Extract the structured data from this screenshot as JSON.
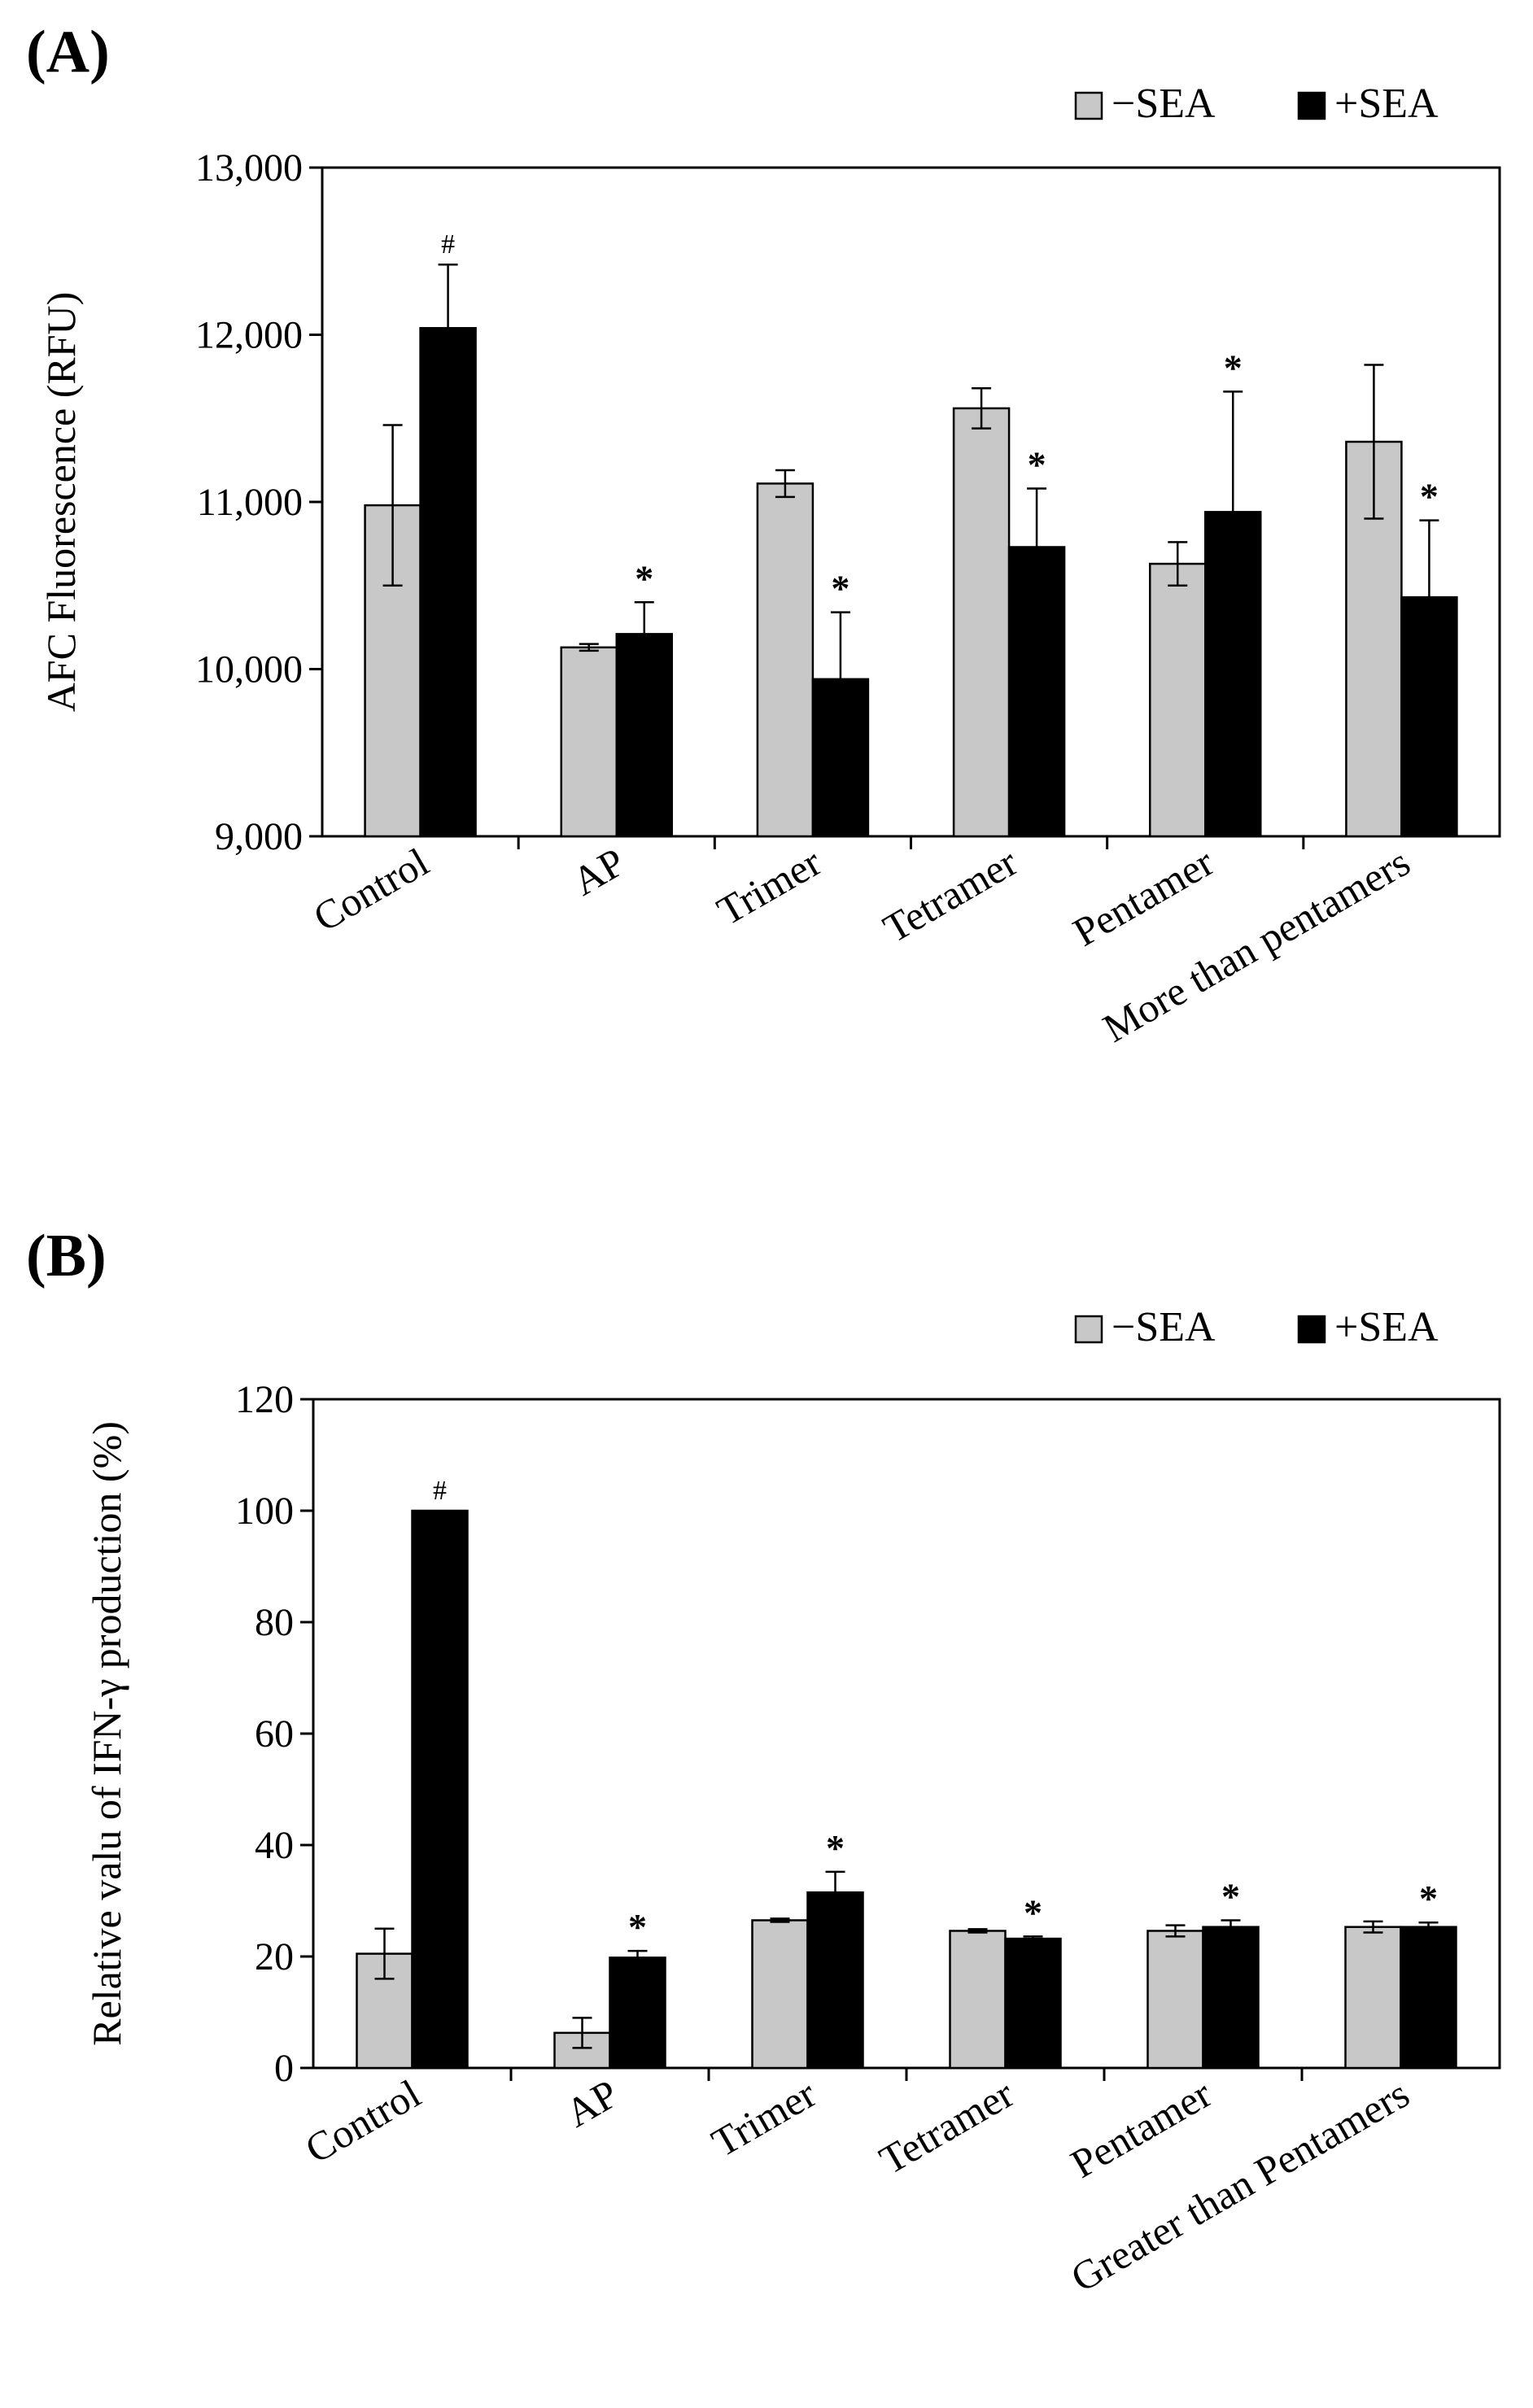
{
  "chart_data": [
    {
      "type": "bar",
      "panel_label": "(A)",
      "title": "",
      "xlabel": "",
      "ylabel": "AFC Fluorescence (RFU)",
      "ylim": [
        9000,
        13000
      ],
      "yticks": [
        9000,
        10000,
        11000,
        12000,
        13000
      ],
      "ytick_labels": [
        "9,000",
        "10,000",
        "11,000",
        "12,000",
        "13,000"
      ],
      "grid": false,
      "legend_position": "top-right",
      "categories": [
        "Control",
        "AP",
        "Trimer",
        "Tetramer",
        "Pentamer",
        "More than pentamers"
      ],
      "series": [
        {
          "name": "−SEA",
          "color": "#c8c8c8",
          "values": [
            10980,
            10130,
            11110,
            11560,
            10630,
            11360
          ],
          "errors": [
            480,
            20,
            80,
            120,
            130,
            460
          ]
        },
        {
          "name": "+SEA",
          "color": "#000000",
          "values": [
            12040,
            10210,
            9940,
            10730,
            10940,
            10430
          ],
          "errors": [
            380,
            190,
            400,
            350,
            720,
            460
          ]
        }
      ],
      "annotations": [
        {
          "category": "Control",
          "series": "+SEA",
          "text": "#"
        },
        {
          "category": "AP",
          "series": "+SEA",
          "text": "*"
        },
        {
          "category": "Trimer",
          "series": "+SEA",
          "text": "*"
        },
        {
          "category": "Tetramer",
          "series": "+SEA",
          "text": "*"
        },
        {
          "category": "Pentamer",
          "series": "+SEA",
          "text": "*"
        },
        {
          "category": "More than pentamers",
          "series": "+SEA",
          "text": "*"
        }
      ]
    },
    {
      "type": "bar",
      "panel_label": "(B)",
      "title": "",
      "xlabel": "",
      "ylabel": "Relative valu of  IFN-γ production (%)",
      "ylim": [
        0,
        120
      ],
      "yticks": [
        0,
        20,
        40,
        60,
        80,
        100,
        120
      ],
      "ytick_labels": [
        "0",
        "20",
        "40",
        "60",
        "80",
        "100",
        "120"
      ],
      "grid": false,
      "legend_position": "top-right",
      "categories": [
        "Control",
        "AP",
        "Trimer",
        "Tetramer",
        "Pentamer",
        "Greater than Pentamers"
      ],
      "series": [
        {
          "name": "−SEA",
          "color": "#c8c8c8",
          "values": [
            20.5,
            6.3,
            26.5,
            24.6,
            24.6,
            25.3
          ],
          "errors": [
            4.5,
            2.7,
            0.3,
            0.3,
            1.0,
            1.0
          ]
        },
        {
          "name": "+SEA",
          "color": "#000000",
          "values": [
            100,
            19.8,
            31.5,
            23.2,
            25.3,
            25.3
          ],
          "errors": [
            0,
            1.2,
            3.7,
            0.4,
            1.2,
            0.8
          ]
        }
      ],
      "annotations": [
        {
          "category": "Control",
          "series": "+SEA",
          "text": "#"
        },
        {
          "category": "AP",
          "series": "+SEA",
          "text": "*"
        },
        {
          "category": "Trimer",
          "series": "+SEA",
          "text": "*"
        },
        {
          "category": "Tetramer",
          "series": "+SEA",
          "text": "*"
        },
        {
          "category": "Pentamer",
          "series": "+SEA",
          "text": "*"
        },
        {
          "category": "Greater than Pentamers",
          "series": "+SEA",
          "text": "*"
        }
      ]
    }
  ]
}
